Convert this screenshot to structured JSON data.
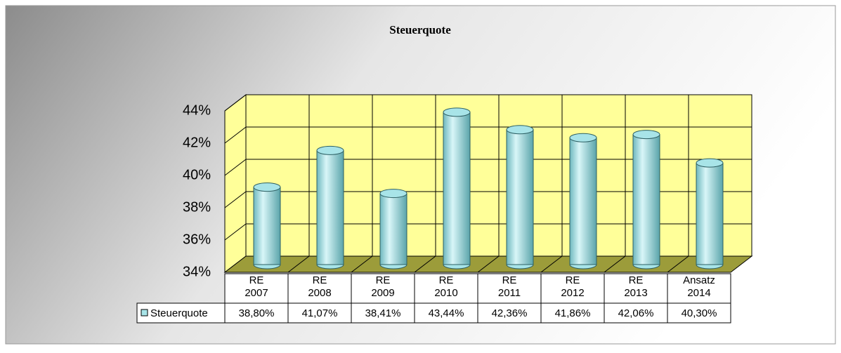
{
  "chart_data": {
    "type": "bar",
    "title": "Steuerquote",
    "categories": [
      [
        "RE",
        "2007"
      ],
      [
        "RE",
        "2008"
      ],
      [
        "RE",
        "2009"
      ],
      [
        "RE",
        "2010"
      ],
      [
        "RE",
        "2011"
      ],
      [
        "RE",
        "2012"
      ],
      [
        "RE",
        "2013"
      ],
      [
        "Ansatz",
        "2014"
      ]
    ],
    "series": [
      {
        "name": "Steuerquote",
        "color": "#a8e4e8",
        "values": [
          38.8,
          41.07,
          38.41,
          43.44,
          42.36,
          41.86,
          42.06,
          40.3
        ],
        "value_labels": [
          "38,80%",
          "41,07%",
          "38,41%",
          "43,44%",
          "42,36%",
          "41,86%",
          "42,06%",
          "40,30%"
        ]
      }
    ],
    "ylim": [
      34,
      44
    ],
    "yticks": [
      {
        "value": 34,
        "label": "34%"
      },
      {
        "value": 36,
        "label": "36%"
      },
      {
        "value": 38,
        "label": "38%"
      },
      {
        "value": 40,
        "label": "40%"
      },
      {
        "value": 42,
        "label": "42%"
      },
      {
        "value": 44,
        "label": "44%"
      }
    ],
    "grid": true
  }
}
